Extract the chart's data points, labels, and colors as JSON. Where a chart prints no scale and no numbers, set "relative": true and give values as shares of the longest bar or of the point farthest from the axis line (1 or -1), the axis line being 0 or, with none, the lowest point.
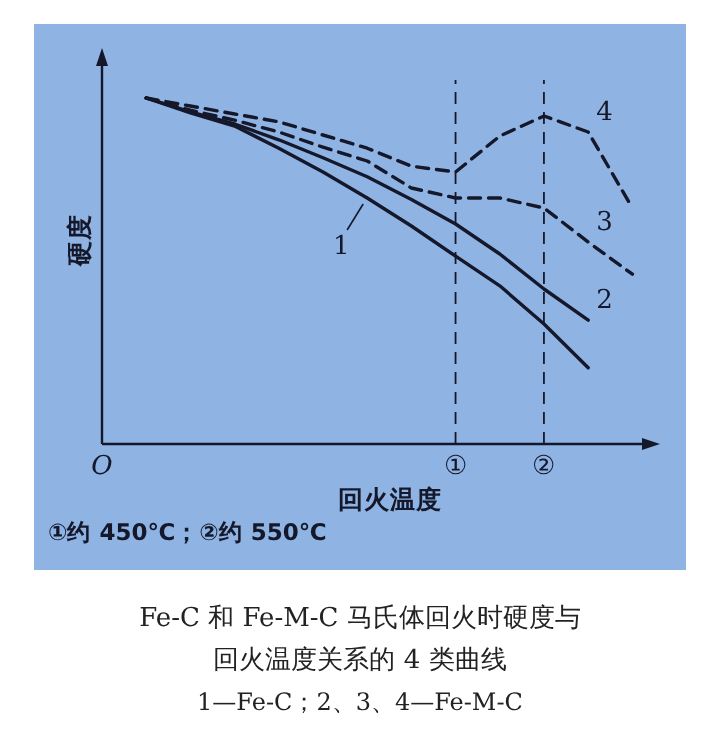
{
  "chart_data": {
    "type": "line",
    "relative": true,
    "title": "Fe-C 和 Fe-M-C 马氏体回火时硬度与回火温度关系的 4 类曲线",
    "xlabel": "回火温度",
    "ylabel": "硬度",
    "categories": [
      "O",
      null,
      null,
      null,
      null,
      null,
      null,
      null,
      "①",
      null,
      "②",
      null,
      null
    ],
    "marker": "none",
    "series": [
      {
        "name": "1",
        "color": "#15182a",
        "line_style": "solid",
        "values": [
          null,
          1.0,
          0.957,
          0.919,
          0.855,
          0.786,
          0.711,
          0.63,
          0.543,
          0.457,
          0.347,
          0.22,
          null
        ]
      },
      {
        "name": "2",
        "color": "#15182a",
        "line_style": "solid",
        "values": [
          null,
          1.0,
          0.96,
          0.925,
          0.879,
          0.827,
          0.772,
          0.707,
          0.636,
          0.549,
          0.448,
          0.358,
          null
        ]
      },
      {
        "name": "3",
        "color": "#15182a",
        "line_style": "dashed",
        "values": [
          null,
          1.0,
          0.965,
          0.936,
          0.902,
          0.858,
          0.818,
          0.74,
          0.711,
          0.711,
          0.682,
          0.584,
          0.491
        ]
      },
      {
        "name": "4",
        "color": "#15182a",
        "line_style": "dashed",
        "values": [
          null,
          1.0,
          0.977,
          0.954,
          0.931,
          0.893,
          0.855,
          0.803,
          0.786,
          0.89,
          0.948,
          0.902,
          0.682
        ]
      }
    ],
    "ref_lines": [
      {
        "axis": "x",
        "value": "①",
        "line_style": "dashed"
      },
      {
        "axis": "x",
        "value": "②",
        "line_style": "dashed"
      }
    ],
    "annotations": [
      "①约 450℃；②约 550℃",
      "1—Fe-C；2、3、4—Fe-M-C"
    ]
  }
}
